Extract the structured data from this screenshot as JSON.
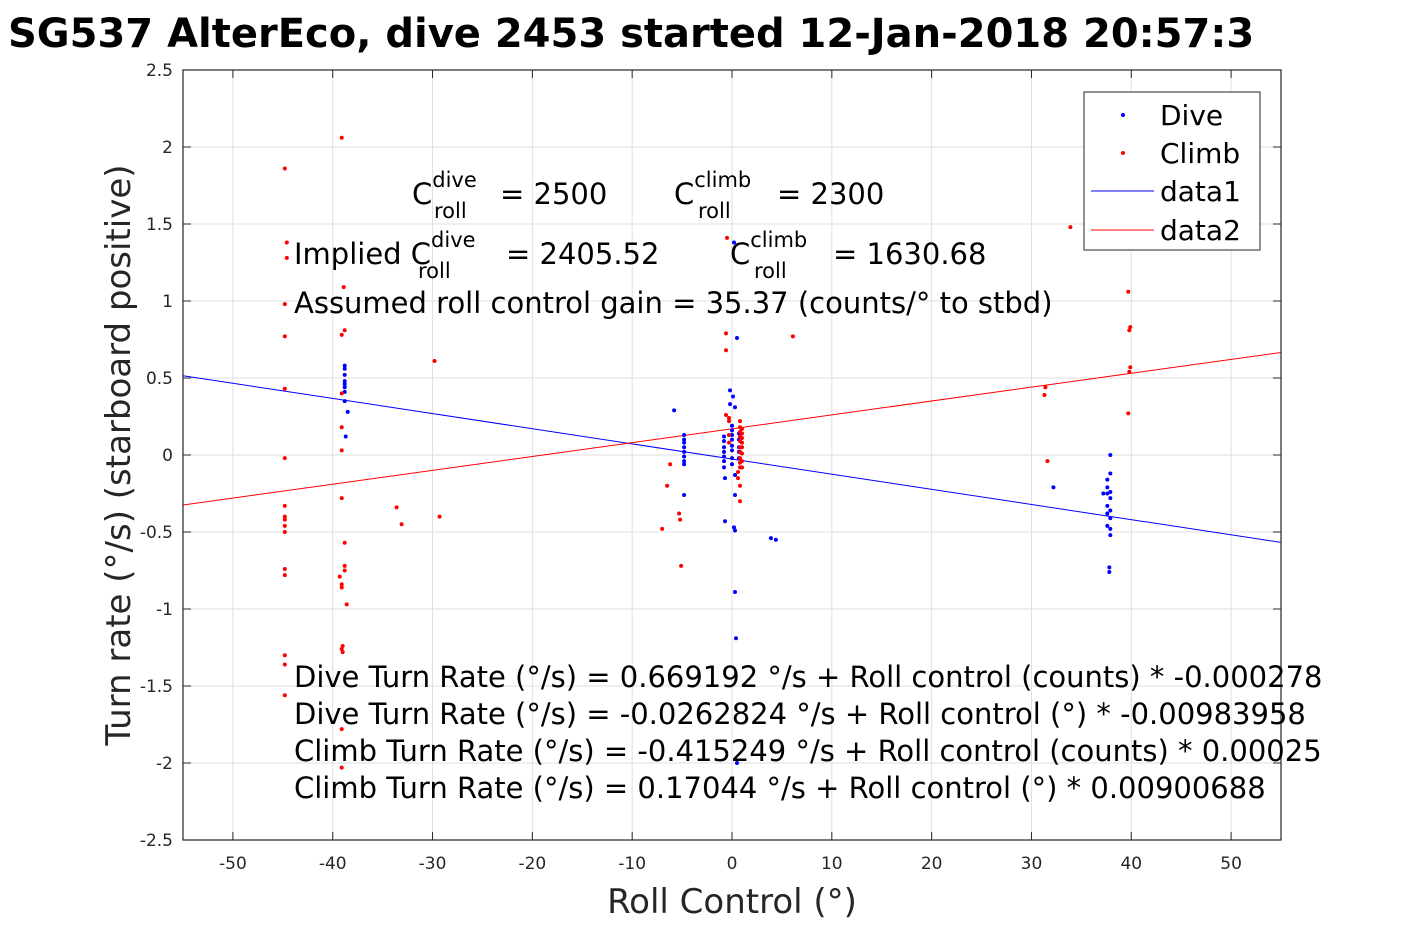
{
  "chart_data": {
    "type": "scatter",
    "title": "SG537 AlterEco, dive 2453 started 12-Jan-2018 20:57:3",
    "xlabel": "Roll Control (°)",
    "ylabel": "Turn rate (°/s) (starboard positive)",
    "xlim": [
      -55,
      55
    ],
    "ylim": [
      -2.5,
      2.5
    ],
    "xticks": [
      -50,
      -40,
      -30,
      -20,
      -10,
      0,
      10,
      20,
      30,
      40,
      50
    ],
    "xtick_labels": [
      "-50",
      "-40",
      "-30",
      "-20",
      "-10",
      "0",
      "10",
      "20",
      "30",
      "40",
      "50"
    ],
    "yticks": [
      -2.5,
      -2,
      -1.5,
      -1,
      -0.5,
      0,
      0.5,
      1,
      1.5,
      2,
      2.5
    ],
    "ytick_labels": [
      "-2.5",
      "-2",
      "-1.5",
      "-1",
      "-0.5",
      "0",
      "0.5",
      "1",
      "1.5",
      "2",
      "2.5"
    ],
    "grid": true,
    "legend_position": "top-right",
    "series": [
      {
        "name": "Dive",
        "kind": "points",
        "color": "#0000ff",
        "points": [
          [
            -38.8,
            0.58
          ],
          [
            -38.8,
            0.56
          ],
          [
            -38.8,
            0.52
          ],
          [
            -38.8,
            0.48
          ],
          [
            -38.8,
            0.46
          ],
          [
            -38.8,
            0.44
          ],
          [
            -38.8,
            0.41
          ],
          [
            -38.8,
            0.35
          ],
          [
            -38.5,
            0.28
          ],
          [
            -38.7,
            0.12
          ],
          [
            -5.8,
            0.29
          ],
          [
            -4.8,
            0.13
          ],
          [
            -4.8,
            0.1
          ],
          [
            -4.8,
            0.08
          ],
          [
            -4.8,
            0.05
          ],
          [
            -4.8,
            0.02
          ],
          [
            -4.8,
            -0.01
          ],
          [
            -4.8,
            -0.04
          ],
          [
            -4.8,
            -0.06
          ],
          [
            -4.8,
            -0.26
          ],
          [
            -0.8,
            0.12
          ],
          [
            -0.8,
            0.09
          ],
          [
            -0.8,
            0.05
          ],
          [
            -0.8,
            0.02
          ],
          [
            -0.8,
            -0.01
          ],
          [
            -0.8,
            -0.04
          ],
          [
            -0.8,
            -0.08
          ],
          [
            -0.7,
            -0.15
          ],
          [
            -0.7,
            -0.43
          ],
          [
            -0.2,
            0.42
          ],
          [
            0.1,
            0.38
          ],
          [
            -0.2,
            0.33
          ],
          [
            0.3,
            0.31
          ],
          [
            0.0,
            0.19
          ],
          [
            0.0,
            0.16
          ],
          [
            0.0,
            0.13
          ],
          [
            0.0,
            0.1
          ],
          [
            0.0,
            0.06
          ],
          [
            0.0,
            0.03
          ],
          [
            0.0,
            -0.02
          ],
          [
            0.0,
            -0.06
          ],
          [
            0.3,
            -0.13
          ],
          [
            0.3,
            -0.26
          ],
          [
            0.2,
            -0.47
          ],
          [
            0.3,
            -0.49
          ],
          [
            0.3,
            -0.89
          ],
          [
            0.4,
            -1.19
          ],
          [
            0.7,
            0.14
          ],
          [
            0.7,
            0.1
          ],
          [
            0.7,
            0.05
          ],
          [
            0.7,
            0.02
          ],
          [
            0.7,
            -0.02
          ],
          [
            0.5,
            0.76
          ],
          [
            0.2,
            1.38
          ],
          [
            0.5,
            -2.0
          ],
          [
            3.9,
            -0.54
          ],
          [
            4.4,
            -0.55
          ],
          [
            32.2,
            -0.21
          ],
          [
            37.9,
            0.0
          ],
          [
            37.9,
            -0.12
          ],
          [
            37.6,
            -0.16
          ],
          [
            37.6,
            -0.21
          ],
          [
            37.2,
            -0.25
          ],
          [
            37.6,
            -0.25
          ],
          [
            37.9,
            -0.24
          ],
          [
            37.9,
            -0.28
          ],
          [
            37.6,
            -0.33
          ],
          [
            37.9,
            -0.36
          ],
          [
            37.6,
            -0.38
          ],
          [
            37.9,
            -0.41
          ],
          [
            37.6,
            -0.46
          ],
          [
            37.9,
            -0.48
          ],
          [
            37.9,
            -0.52
          ],
          [
            37.8,
            -0.73
          ],
          [
            37.8,
            -0.76
          ]
        ]
      },
      {
        "name": "Climb",
        "kind": "points",
        "color": "#ff0000",
        "points": [
          [
            -44.8,
            1.86
          ],
          [
            -44.6,
            1.38
          ],
          [
            -44.6,
            1.28
          ],
          [
            -44.8,
            0.98
          ],
          [
            -44.8,
            0.77
          ],
          [
            -44.8,
            0.43
          ],
          [
            -44.8,
            -0.02
          ],
          [
            -44.8,
            -0.33
          ],
          [
            -44.8,
            -0.4
          ],
          [
            -44.8,
            -0.42
          ],
          [
            -44.8,
            -0.46
          ],
          [
            -44.8,
            -0.5
          ],
          [
            -44.8,
            -0.74
          ],
          [
            -44.8,
            -0.78
          ],
          [
            -44.8,
            -1.3
          ],
          [
            -44.8,
            -1.36
          ],
          [
            -44.8,
            -1.56
          ],
          [
            -39.1,
            2.06
          ],
          [
            -38.9,
            1.09
          ],
          [
            -38.8,
            0.81
          ],
          [
            -39.1,
            0.78
          ],
          [
            -39.1,
            0.4
          ],
          [
            -39.1,
            0.18
          ],
          [
            -39.1,
            0.03
          ],
          [
            -39.1,
            -0.28
          ],
          [
            -38.8,
            -0.57
          ],
          [
            -38.8,
            -0.72
          ],
          [
            -38.8,
            -0.75
          ],
          [
            -39.3,
            -0.79
          ],
          [
            -39.1,
            -0.84
          ],
          [
            -39.1,
            -0.86
          ],
          [
            -38.6,
            -0.97
          ],
          [
            -39.0,
            -1.24
          ],
          [
            -39.1,
            -1.26
          ],
          [
            -39.0,
            -1.28
          ],
          [
            -39.1,
            -1.78
          ],
          [
            -39.1,
            -2.03
          ],
          [
            -33.6,
            -0.34
          ],
          [
            -33.1,
            -0.45
          ],
          [
            -29.8,
            0.61
          ],
          [
            -29.3,
            -0.4
          ],
          [
            -7.0,
            -0.48
          ],
          [
            -6.5,
            -0.2
          ],
          [
            -6.2,
            -0.06
          ],
          [
            -5.3,
            -0.38
          ],
          [
            -5.2,
            -0.42
          ],
          [
            -5.1,
            -0.72
          ],
          [
            -0.5,
            1.41
          ],
          [
            -0.6,
            0.79
          ],
          [
            -0.6,
            0.68
          ],
          [
            -0.6,
            0.26
          ],
          [
            -0.3,
            0.24
          ],
          [
            -0.3,
            0.22
          ],
          [
            -0.3,
            0.13
          ],
          [
            -0.3,
            0.08
          ],
          [
            0.8,
            0.22
          ],
          [
            0.8,
            0.18
          ],
          [
            0.8,
            0.15
          ],
          [
            0.8,
            0.12
          ],
          [
            0.8,
            0.09
          ],
          [
            0.8,
            0.05
          ],
          [
            0.8,
            0.02
          ],
          [
            0.8,
            -0.02
          ],
          [
            0.8,
            -0.05
          ],
          [
            0.8,
            -0.08
          ],
          [
            0.8,
            -0.2
          ],
          [
            0.8,
            -0.3
          ],
          [
            1.0,
            0.17
          ],
          [
            1.0,
            0.14
          ],
          [
            1.0,
            0.11
          ],
          [
            1.0,
            0.08
          ],
          [
            1.0,
            0.05
          ],
          [
            1.0,
            0.01
          ],
          [
            1.0,
            -0.04
          ],
          [
            1.0,
            -0.08
          ],
          [
            0.6,
            -0.11
          ],
          [
            0.6,
            -0.15
          ],
          [
            6.1,
            0.77
          ],
          [
            31.4,
            0.44
          ],
          [
            31.3,
            0.39
          ],
          [
            31.6,
            -0.04
          ],
          [
            33.9,
            1.48
          ],
          [
            39.7,
            1.06
          ],
          [
            39.9,
            0.83
          ],
          [
            39.8,
            0.81
          ],
          [
            39.9,
            0.57
          ],
          [
            39.8,
            0.54
          ],
          [
            39.7,
            0.27
          ]
        ]
      },
      {
        "name": "data1",
        "kind": "line",
        "color": "#0000ff",
        "x": [
          -55,
          55
        ],
        "y": [
          0.5149,
          -0.5673
        ]
      },
      {
        "name": "data2",
        "kind": "line",
        "color": "#ff0000",
        "x": [
          -55,
          55
        ],
        "y": [
          -0.3249,
          0.6658
        ]
      }
    ],
    "annotations": {
      "c_roll_dive_label": "C",
      "c_roll_dive_sup": "dive",
      "c_roll_dive_sub": "roll",
      "c_roll_dive_value": "= 2500",
      "c_roll_climb_label": "C",
      "c_roll_climb_sup": "climb",
      "c_roll_climb_sub": "roll",
      "c_roll_climb_value": "= 2300",
      "implied_prefix": "Implied C",
      "implied_dive_sup": "dive",
      "implied_dive_sub": "roll",
      "implied_dive_value": "= 2405.52",
      "implied_climb_label": "C",
      "implied_climb_sup": "climb",
      "implied_climb_sub": "roll",
      "implied_climb_value": "= 1630.68",
      "gain": "Assumed roll control gain = 35.37 (counts/° to stbd)",
      "fit_lines": [
        "Dive Turn Rate (°/s) = 0.669192 °/s + Roll control (counts) * -0.000278",
        "Dive Turn Rate (°/s) = -0.0262824 °/s + Roll control (°) * -0.00983958",
        "Climb Turn Rate (°/s) = -0.415249 °/s + Roll control (counts) * 0.00025",
        "Climb Turn Rate (°/s) = 0.17044 °/s + Roll control (°) * 0.00900688"
      ]
    }
  }
}
